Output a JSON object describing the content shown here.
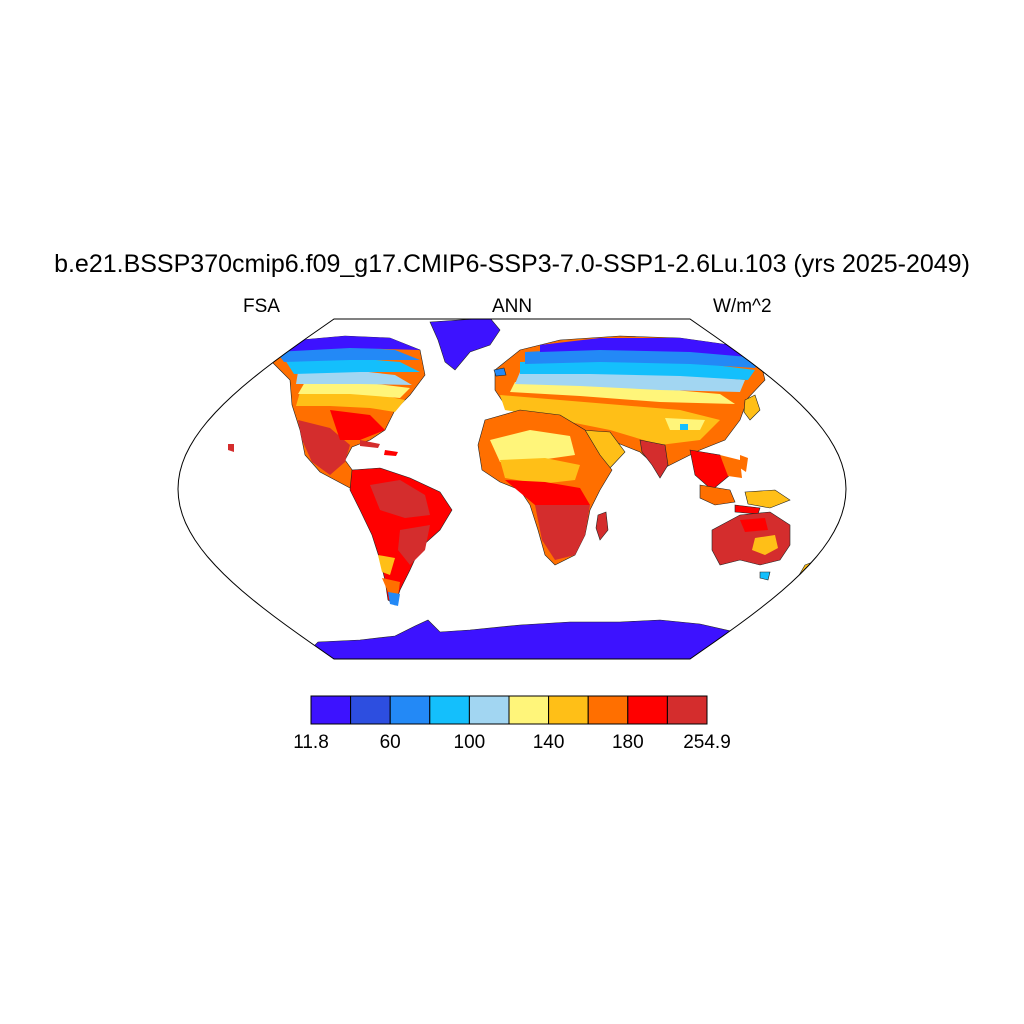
{
  "title": "b.e21.BSSP370cmip6.f09_g17.CMIP6-SSP3-7.0-SSP1-2.6Lu.103 (yrs 2025-2049)",
  "left_label": "FSA",
  "center_label": "ANN",
  "right_label": "W/m^2",
  "map": {
    "projection": "Robinson",
    "ocean_fill": "#ffffff",
    "colorbar": {
      "colors": [
        "#3d12ff",
        "#2d4ee0",
        "#2389f6",
        "#14bffc",
        "#a2d6f2",
        "#fff57a",
        "#ffbf17",
        "#ff6f00",
        "#ff0000",
        "#d42d2d"
      ],
      "tick_labels": [
        "11.8",
        "60",
        "100",
        "140",
        "180",
        "254.9"
      ],
      "min": 11.8,
      "max": 254.9,
      "unit": "W/m^2"
    }
  }
}
